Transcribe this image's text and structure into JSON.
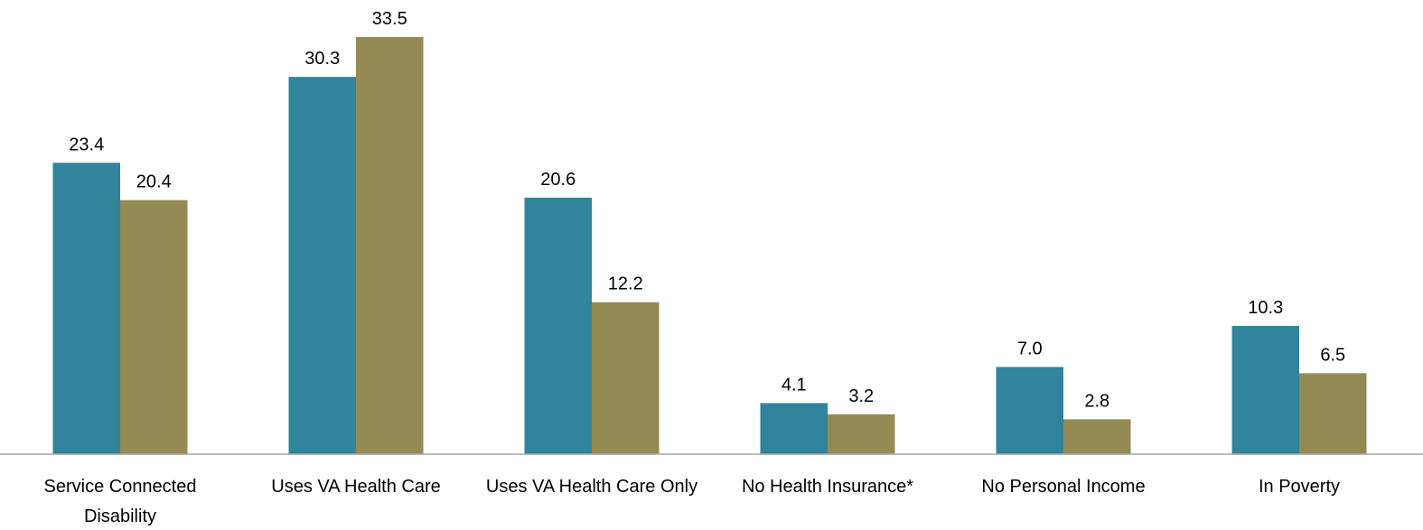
{
  "chart_data": {
    "type": "bar",
    "categories": [
      "Service Connected Disability",
      "Uses VA Health Care",
      "Uses VA Health Care Only",
      "No Health Insurance*",
      "No Personal Income",
      "In Poverty"
    ],
    "series": [
      {
        "color": "#31849b",
        "values": [
          23.4,
          30.3,
          20.6,
          4.1,
          7.0,
          10.3
        ],
        "value_labels": [
          "23.4",
          "30.3",
          "20.6",
          "4.1",
          "7.0",
          "10.3"
        ]
      },
      {
        "color": "#948a54",
        "values": [
          20.4,
          33.5,
          12.2,
          3.2,
          2.8,
          6.5
        ],
        "value_labels": [
          "20.4",
          "33.5",
          "12.2",
          "3.2",
          "2.8",
          "6.5"
        ]
      }
    ],
    "ylim": [
      0,
      35
    ]
  }
}
